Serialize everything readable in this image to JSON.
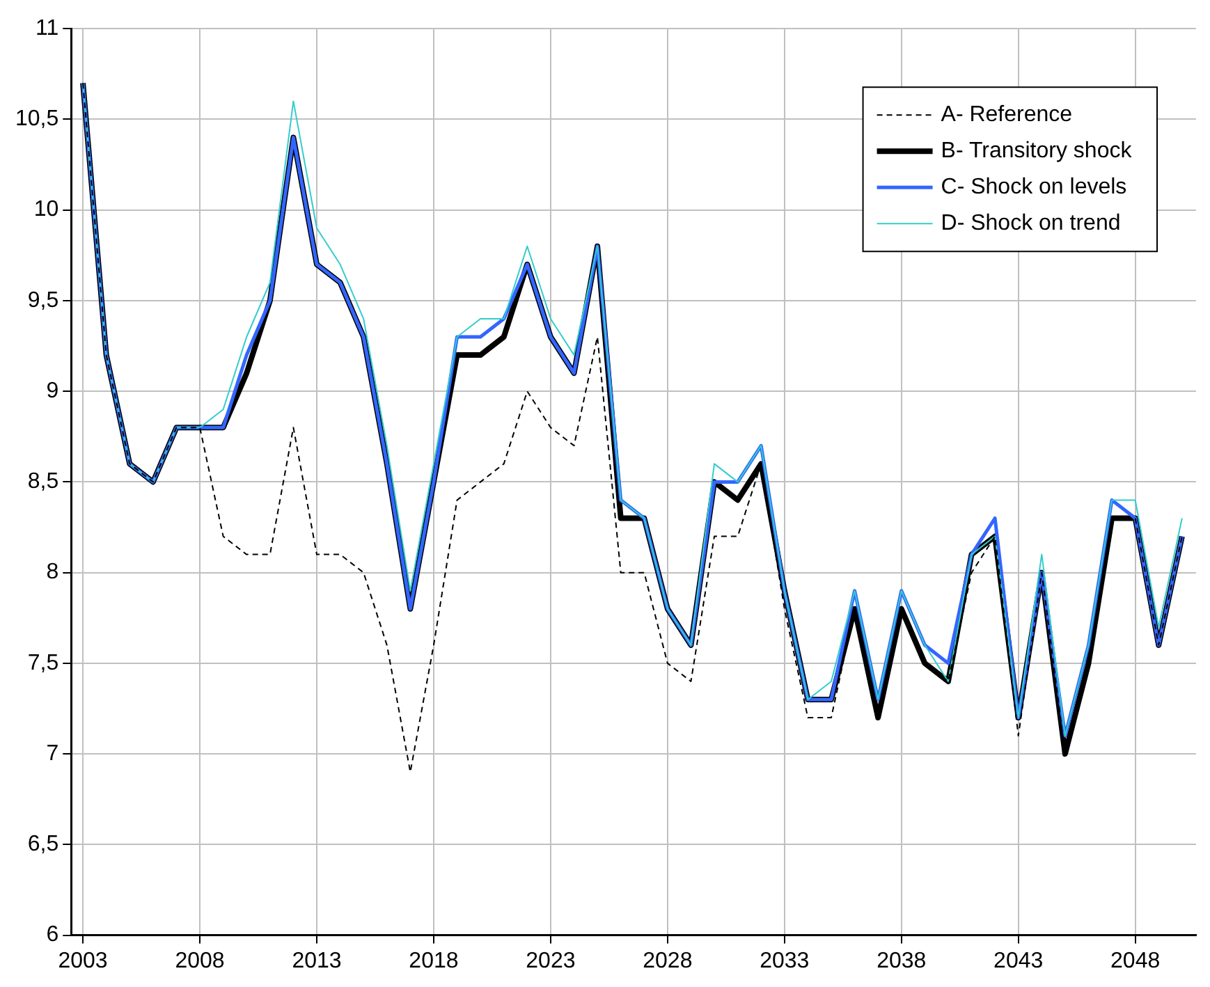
{
  "chart_data": {
    "type": "line",
    "x": [
      2003,
      2004,
      2005,
      2006,
      2007,
      2008,
      2009,
      2010,
      2011,
      2012,
      2013,
      2014,
      2015,
      2016,
      2017,
      2018,
      2019,
      2020,
      2021,
      2022,
      2023,
      2024,
      2025,
      2026,
      2027,
      2028,
      2029,
      2030,
      2031,
      2032,
      2033,
      2034,
      2035,
      2036,
      2037,
      2038,
      2039,
      2040,
      2041,
      2042,
      2043,
      2044,
      2045,
      2046,
      2047,
      2048,
      2049,
      2050
    ],
    "series": [
      {
        "name": "A- Reference",
        "color": "#000000",
        "line_style": "dashed",
        "values": [
          10.7,
          9.2,
          8.6,
          8.5,
          8.8,
          8.8,
          8.2,
          8.1,
          8.1,
          8.8,
          8.1,
          8.1,
          8.0,
          7.6,
          6.9,
          7.6,
          8.4,
          8.5,
          8.6,
          9.0,
          8.8,
          8.7,
          9.3,
          8.0,
          8.0,
          7.5,
          7.4,
          8.2,
          8.2,
          8.6,
          7.8,
          7.2,
          7.2,
          7.8,
          7.2,
          7.8,
          7.5,
          7.4,
          8.0,
          8.2,
          7.1,
          8.0,
          7.0,
          7.5,
          8.3,
          8.3,
          7.6,
          8.2
        ]
      },
      {
        "name": "B- Transitory shock",
        "color": "#000000",
        "line_style": "solid",
        "values": [
          10.7,
          9.2,
          8.6,
          8.5,
          8.8,
          8.8,
          8.8,
          9.1,
          9.5,
          10.4,
          9.7,
          9.6,
          9.3,
          8.6,
          7.8,
          8.5,
          9.2,
          9.2,
          9.3,
          9.7,
          9.3,
          9.1,
          9.8,
          8.3,
          8.3,
          7.8,
          7.6,
          8.5,
          8.4,
          8.6,
          7.9,
          7.3,
          7.3,
          7.8,
          7.2,
          7.8,
          7.5,
          7.4,
          8.1,
          8.2,
          7.2,
          8.0,
          7.0,
          7.5,
          8.3,
          8.3,
          7.6,
          8.2
        ]
      },
      {
        "name": "C- Shock on levels",
        "color": "#3366ff",
        "line_style": "solid",
        "values": [
          10.7,
          9.2,
          8.6,
          8.5,
          8.8,
          8.8,
          8.8,
          9.2,
          9.5,
          10.4,
          9.7,
          9.6,
          9.3,
          8.6,
          7.8,
          8.5,
          9.3,
          9.3,
          9.4,
          9.7,
          9.3,
          9.1,
          9.8,
          8.4,
          8.3,
          7.8,
          7.6,
          8.5,
          8.5,
          8.7,
          7.9,
          7.3,
          7.3,
          7.9,
          7.3,
          7.9,
          7.6,
          7.5,
          8.1,
          8.3,
          7.2,
          8.0,
          7.1,
          7.6,
          8.4,
          8.3,
          7.6,
          8.2
        ]
      },
      {
        "name": "D- Shock on trend",
        "color": "#33cccc",
        "line_style": "solid",
        "values": [
          10.7,
          9.2,
          8.6,
          8.5,
          8.8,
          8.8,
          8.9,
          9.3,
          9.6,
          10.6,
          9.9,
          9.7,
          9.4,
          8.7,
          7.9,
          8.6,
          9.3,
          9.4,
          9.4,
          9.8,
          9.4,
          9.2,
          9.8,
          8.4,
          8.3,
          7.8,
          7.6,
          8.6,
          8.5,
          8.7,
          7.9,
          7.3,
          7.4,
          7.9,
          7.3,
          7.9,
          7.6,
          7.4,
          8.1,
          8.2,
          7.2,
          8.1,
          7.1,
          7.6,
          8.4,
          8.4,
          7.7,
          8.3
        ]
      }
    ],
    "xlim": [
      2002.5,
      2050.6
    ],
    "xticks": [
      2003,
      2008,
      2013,
      2018,
      2023,
      2028,
      2033,
      2038,
      2043,
      2048
    ],
    "ylim": [
      6,
      11
    ],
    "yticks": [
      6,
      {
        "value": 6.5,
        "label": "6,5"
      },
      7,
      {
        "value": 7.5,
        "label": "7,5"
      },
      8,
      {
        "value": 8.5,
        "label": "8,5"
      },
      9,
      {
        "value": 9.5,
        "label": "9,5"
      },
      10,
      {
        "value": 10.5,
        "label": "10,5"
      },
      11
    ],
    "grid": true,
    "legend": "top right",
    "marker": "none"
  }
}
